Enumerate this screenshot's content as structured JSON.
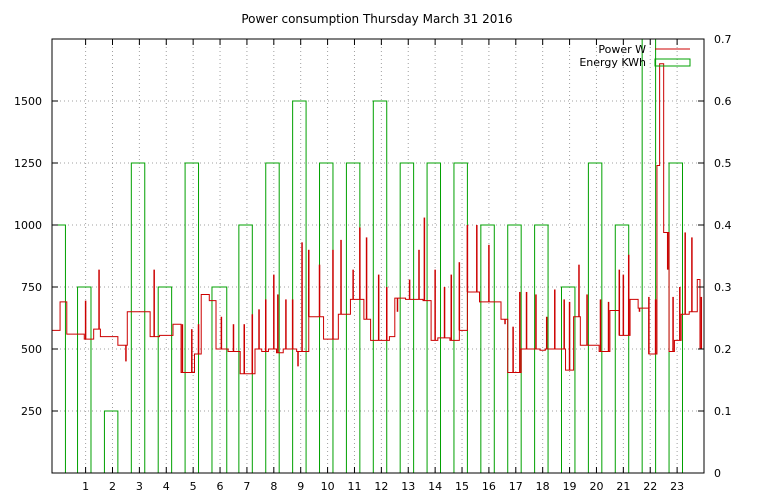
{
  "chart_data": {
    "type": "line",
    "title": "Power consumption Thursday March 31 2016",
    "grid": true,
    "legend_placement": "top-right",
    "x_axis": {
      "range": [
        -0.25,
        24.0
      ],
      "ticks": [
        1,
        2,
        3,
        4,
        5,
        6,
        7,
        8,
        9,
        10,
        11,
        12,
        13,
        14,
        15,
        16,
        17,
        18,
        19,
        20,
        21,
        22,
        23
      ]
    },
    "y_axis_left": {
      "range": [
        0,
        1750
      ],
      "ticks": [
        250,
        500,
        750,
        1000,
        1250,
        1500
      ],
      "tick_labels": [
        "250",
        "500",
        "750",
        "1000",
        "1250",
        "1500"
      ]
    },
    "y_axis_right": {
      "range": [
        0,
        0.7
      ],
      "ticks": [
        0,
        0.1,
        0.2,
        0.3,
        0.4,
        0.5,
        0.6,
        0.7
      ],
      "tick_labels": [
        "0",
        "0.1",
        "0.2",
        "0.3",
        "0.4",
        "0.5",
        "0.6",
        "0.7"
      ]
    },
    "series": [
      {
        "name": "Power W",
        "axis": "left",
        "color": "#cc0000",
        "style": "step",
        "points": [
          [
            -0.25,
            575
          ],
          [
            0.0,
            575
          ],
          [
            0.05,
            690
          ],
          [
            0.3,
            560
          ],
          [
            0.95,
            540
          ],
          [
            1.3,
            580
          ],
          [
            1.55,
            550
          ],
          [
            2.2,
            515
          ],
          [
            2.55,
            650
          ],
          [
            3.4,
            550
          ],
          [
            3.75,
            555
          ],
          [
            4.1,
            555
          ],
          [
            4.25,
            600
          ],
          [
            4.55,
            405
          ],
          [
            5.05,
            480
          ],
          [
            5.3,
            720
          ],
          [
            5.6,
            695
          ],
          [
            5.85,
            500
          ],
          [
            6.3,
            490
          ],
          [
            6.75,
            400
          ],
          [
            7.3,
            500
          ],
          [
            7.55,
            490
          ],
          [
            7.8,
            500
          ],
          [
            8.1,
            485
          ],
          [
            8.35,
            500
          ],
          [
            8.85,
            490
          ],
          [
            9.3,
            630
          ],
          [
            9.85,
            540
          ],
          [
            10.4,
            640
          ],
          [
            10.85,
            700
          ],
          [
            11.35,
            620
          ],
          [
            11.6,
            535
          ],
          [
            12.3,
            550
          ],
          [
            12.5,
            705
          ],
          [
            12.9,
            700
          ],
          [
            13.55,
            695
          ],
          [
            13.85,
            535
          ],
          [
            14.1,
            545
          ],
          [
            14.55,
            535
          ],
          [
            14.9,
            575
          ],
          [
            15.2,
            730
          ],
          [
            15.65,
            690
          ],
          [
            16.1,
            690
          ],
          [
            16.45,
            620
          ],
          [
            16.7,
            405
          ],
          [
            17.2,
            500
          ],
          [
            17.55,
            500
          ],
          [
            17.9,
            495
          ],
          [
            18.1,
            500
          ],
          [
            18.5,
            500
          ],
          [
            18.85,
            415
          ],
          [
            19.15,
            630
          ],
          [
            19.4,
            515
          ],
          [
            19.85,
            515
          ],
          [
            20.1,
            490
          ],
          [
            20.5,
            655
          ],
          [
            20.85,
            555
          ],
          [
            21.25,
            700
          ],
          [
            21.55,
            665
          ],
          [
            21.95,
            480
          ],
          [
            22.25,
            1240
          ],
          [
            22.35,
            1650
          ],
          [
            22.5,
            970
          ],
          [
            22.7,
            490
          ],
          [
            22.9,
            535
          ],
          [
            23.15,
            640
          ],
          [
            23.45,
            650
          ],
          [
            23.75,
            780
          ],
          [
            23.85,
            500
          ],
          [
            24.0,
            480
          ]
        ],
        "spikes": [
          [
            0.1,
            690
          ],
          [
            1.0,
            695
          ],
          [
            1.5,
            820
          ],
          [
            2.5,
            450
          ],
          [
            3.55,
            820
          ],
          [
            4.6,
            600
          ],
          [
            4.95,
            580
          ],
          [
            5.2,
            600
          ],
          [
            5.4,
            720
          ],
          [
            6.05,
            630
          ],
          [
            6.5,
            600
          ],
          [
            6.9,
            600
          ],
          [
            7.2,
            640
          ],
          [
            7.45,
            660
          ],
          [
            7.7,
            700
          ],
          [
            8.0,
            800
          ],
          [
            8.15,
            720
          ],
          [
            8.45,
            700
          ],
          [
            8.7,
            700
          ],
          [
            8.9,
            430
          ],
          [
            9.05,
            930
          ],
          [
            9.3,
            900
          ],
          [
            9.7,
            840
          ],
          [
            10.2,
            900
          ],
          [
            10.5,
            940
          ],
          [
            10.95,
            820
          ],
          [
            11.2,
            990
          ],
          [
            11.45,
            950
          ],
          [
            11.9,
            800
          ],
          [
            12.2,
            750
          ],
          [
            12.6,
            650
          ],
          [
            13.05,
            780
          ],
          [
            13.4,
            900
          ],
          [
            13.6,
            1030
          ],
          [
            14.0,
            820
          ],
          [
            14.35,
            750
          ],
          [
            14.6,
            800
          ],
          [
            14.9,
            850
          ],
          [
            15.2,
            1000
          ],
          [
            15.55,
            1000
          ],
          [
            16.0,
            920
          ],
          [
            16.6,
            600
          ],
          [
            16.9,
            590
          ],
          [
            17.15,
            730
          ],
          [
            17.4,
            730
          ],
          [
            17.75,
            720
          ],
          [
            18.15,
            630
          ],
          [
            18.45,
            740
          ],
          [
            18.8,
            700
          ],
          [
            19.0,
            690
          ],
          [
            19.35,
            840
          ],
          [
            19.65,
            720
          ],
          [
            20.15,
            700
          ],
          [
            20.45,
            690
          ],
          [
            20.85,
            820
          ],
          [
            21.0,
            800
          ],
          [
            21.2,
            880
          ],
          [
            21.6,
            650
          ],
          [
            21.95,
            710
          ],
          [
            22.2,
            700
          ],
          [
            22.65,
            820
          ],
          [
            22.85,
            710
          ],
          [
            23.1,
            750
          ],
          [
            23.3,
            970
          ],
          [
            23.55,
            950
          ],
          [
            23.9,
            710
          ]
        ]
      },
      {
        "name": "Energy KWh",
        "axis": "right",
        "color": "#00a000",
        "style": "bars",
        "bars": [
          [
            -0.25,
            0.25,
            0.4
          ],
          [
            0.7,
            1.2,
            0.3
          ],
          [
            1.7,
            2.2,
            0.1
          ],
          [
            2.7,
            3.2,
            0.5
          ],
          [
            3.7,
            4.2,
            0.3
          ],
          [
            4.7,
            5.2,
            0.5
          ],
          [
            5.7,
            6.25,
            0.3
          ],
          [
            6.7,
            7.2,
            0.4
          ],
          [
            7.7,
            8.2,
            0.5
          ],
          [
            8.7,
            9.2,
            0.6
          ],
          [
            9.7,
            10.2,
            0.5
          ],
          [
            10.7,
            11.2,
            0.5
          ],
          [
            11.7,
            12.2,
            0.6
          ],
          [
            12.7,
            13.2,
            0.5
          ],
          [
            13.7,
            14.2,
            0.5
          ],
          [
            14.7,
            15.2,
            0.5
          ],
          [
            15.7,
            16.2,
            0.4
          ],
          [
            16.7,
            17.2,
            0.4
          ],
          [
            17.7,
            18.2,
            0.4
          ],
          [
            18.7,
            19.2,
            0.3
          ],
          [
            19.7,
            20.2,
            0.5
          ],
          [
            20.7,
            21.2,
            0.4
          ],
          [
            21.7,
            22.2,
            0.7
          ],
          [
            22.7,
            23.2,
            0.5
          ]
        ]
      }
    ]
  }
}
